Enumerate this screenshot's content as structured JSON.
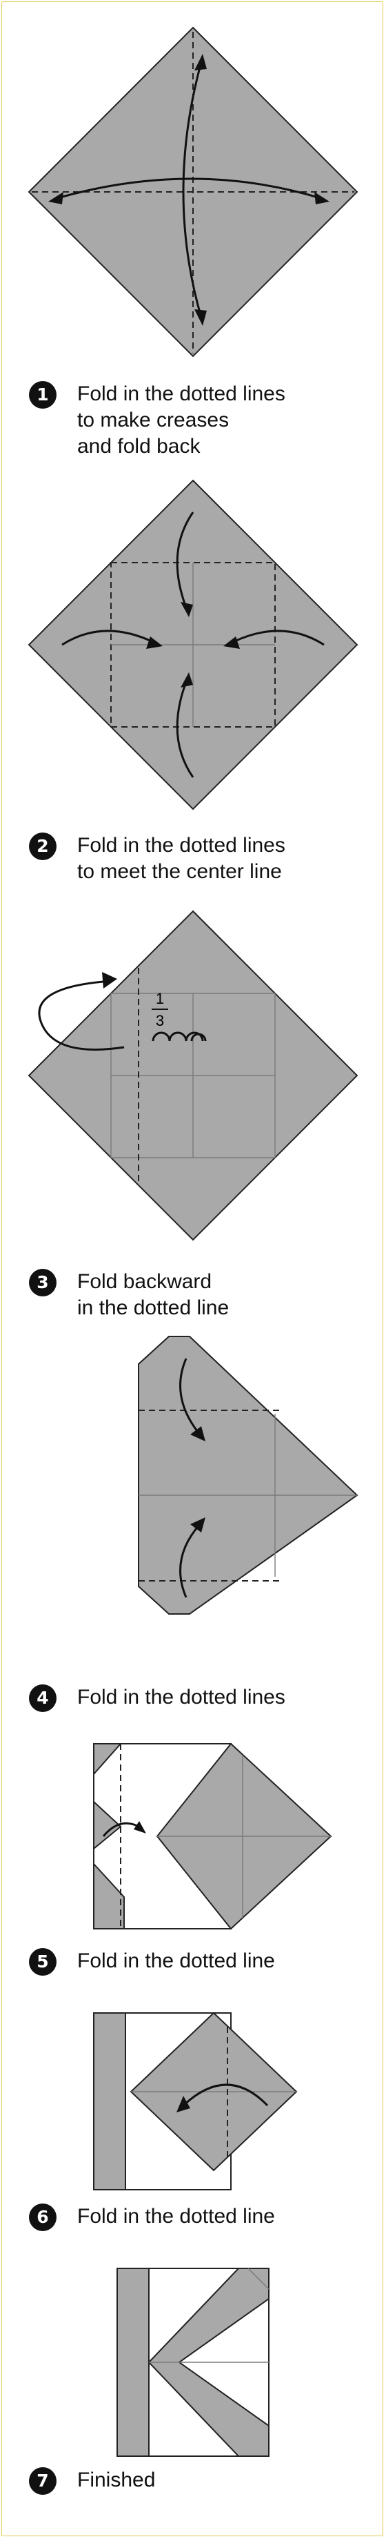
{
  "steps": [
    {
      "number": "1",
      "text": "Fold in the dotted lines\nto make creases\nand fold back"
    },
    {
      "number": "2",
      "text": "Fold in the dotted lines\nto meet the center line"
    },
    {
      "number": "3",
      "text": "Fold backward\nin the dotted line"
    },
    {
      "number": "4",
      "text": "Fold in the dotted lines"
    },
    {
      "number": "5",
      "text": "Fold in the dotted line"
    },
    {
      "number": "6",
      "text": "Fold in the dotted line"
    },
    {
      "number": "7",
      "text": "Finished"
    }
  ],
  "fraction": {
    "numerator": "1",
    "denominator": "3"
  },
  "colors": {
    "paper": "#a9a9a9",
    "ink": "#111111",
    "border": "#e7c84a"
  }
}
